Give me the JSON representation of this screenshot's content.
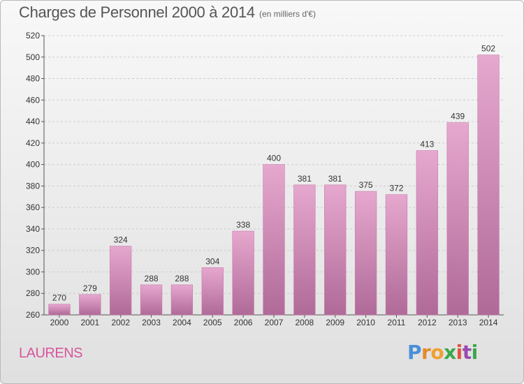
{
  "header": {
    "title": "Charges de Personnel 2000 à 2014",
    "subtitle": "(en milliers d'€)"
  },
  "footer": {
    "place": "LAURENS",
    "logo_letters": [
      "P",
      "r",
      "o",
      "x",
      "i",
      "t",
      "i"
    ],
    "logo_colors": [
      "#4a90d9",
      "#e48a2a",
      "#f0a030",
      "#3aa84a",
      "#e2553a",
      "#9a4ab0",
      "#3aa84a"
    ]
  },
  "colors": {
    "bar_top": "#e6a8cf",
    "bar_bottom": "#b06a98",
    "bar_border": "#c77ba9",
    "grid": "#cccccc",
    "axis_text": "#333333"
  },
  "chart_data": {
    "type": "bar",
    "title": "Charges de Personnel 2000 à 2014",
    "subtitle": "(en milliers d'€)",
    "categories": [
      "2000",
      "2001",
      "2002",
      "2003",
      "2004",
      "2005",
      "2006",
      "2007",
      "2008",
      "2009",
      "2010",
      "2011",
      "2012",
      "2013",
      "2014"
    ],
    "values": [
      270,
      279,
      324,
      288,
      288,
      304,
      338,
      400,
      381,
      381,
      375,
      372,
      413,
      439,
      502
    ],
    "data_labels": [
      "270",
      "279",
      "324",
      "288",
      "288",
      "304",
      "338",
      "400",
      "381",
      "381",
      "375",
      "372",
      "413",
      "439",
      "502"
    ],
    "ylim": [
      260,
      520
    ],
    "yticks": [
      260,
      280,
      300,
      320,
      340,
      360,
      380,
      400,
      420,
      440,
      460,
      480,
      500,
      520
    ],
    "xlabel": "",
    "ylabel": "",
    "grid": true
  }
}
